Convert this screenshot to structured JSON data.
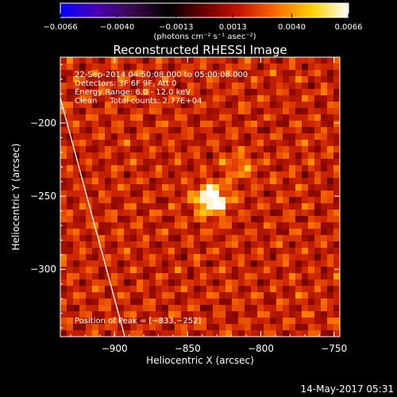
{
  "chart_data": {
    "type": "heatmap",
    "title": "Reconstructed RHESSI Image",
    "xlabel": "Heliocentric X (arcsec)",
    "ylabel": "Heliocentric Y (arcsec)",
    "xlim": [
      -937,
      -746
    ],
    "ylim": [
      -346,
      -155
    ],
    "xticks": [
      {
        "value": -900,
        "label": "−900"
      },
      {
        "value": -850,
        "label": "−850"
      },
      {
        "value": -800,
        "label": "−800"
      },
      {
        "value": -750,
        "label": "−750"
      }
    ],
    "yticks": [
      {
        "value": -200,
        "label": "−200"
      },
      {
        "value": -250,
        "label": "−250"
      },
      {
        "value": -300,
        "label": "−300"
      }
    ],
    "colorbar": {
      "range": [
        -0.0066,
        0.0066
      ],
      "units": "(photons cm⁻² s⁻¹ asec⁻²)",
      "ticks": [
        {
          "value": -0.0066,
          "label": "−0.0066"
        },
        {
          "value": -0.004,
          "label": "−0.0040"
        },
        {
          "value": -0.0013,
          "label": "−0.0013"
        },
        {
          "value": 0.0013,
          "label": "0.0013"
        },
        {
          "value": 0.004,
          "label": "0.0040"
        },
        {
          "value": 0.0066,
          "label": "0.0066"
        }
      ],
      "colors": [
        "#0000ff",
        "#4b00b4",
        "#3a0a4a",
        "#000000",
        "#6e0000",
        "#c81400",
        "#ff6e00",
        "#ffd200",
        "#ffffff"
      ]
    },
    "annotations": [
      "22-Sep-2014 04:50:08.000 to 05:00:08.000",
      "Detectors: 3F 6F 9F, Att 0",
      "Energy Range: 6.0 - 12.0 keV",
      "Clean     Total counts: 2.77E+04"
    ],
    "peak_label": "Position of Peak = [−833,−252]",
    "peak": [
      -833,
      -252
    ],
    "limb_line": [
      [
        -937,
        -183
      ],
      [
        -893,
        -346
      ]
    ]
  },
  "footer": {
    "timestamp": "14-May-2017 05:31"
  }
}
